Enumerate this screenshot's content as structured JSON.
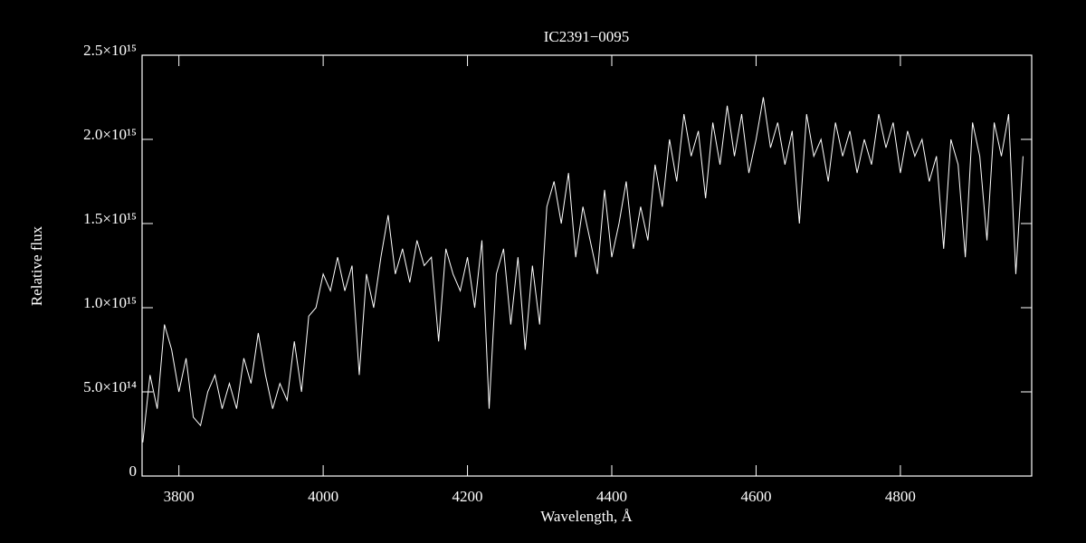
{
  "chart_data": {
    "type": "line",
    "title": "IC2391−0095",
    "xlabel": "Wavelength, Å",
    "ylabel": "Relative flux",
    "color": "#ffffff",
    "xlim": [
      3749,
      4982
    ],
    "ylim": [
      0,
      2500000000000000.0
    ],
    "xticks": [
      3800,
      4000,
      4200,
      4400,
      4600,
      4800
    ],
    "yticks": [
      0,
      {
        "value": 500000000000000.0,
        "label": "5.0×10¹⁴"
      },
      {
        "value": 1000000000000000.0,
        "label": "1.0×10¹⁵"
      },
      {
        "value": 1500000000000000.0,
        "label": "1.5×10¹⁵"
      },
      {
        "value": 2000000000000000.0,
        "label": "2.0×10¹⁵"
      },
      {
        "value": 2500000000000000.0,
        "label": "2.5×10¹⁵"
      }
    ],
    "x": [
      3750,
      3760,
      3770,
      3780,
      3790,
      3800,
      3810,
      3820,
      3830,
      3840,
      3850,
      3860,
      3870,
      3880,
      3890,
      3900,
      3910,
      3920,
      3930,
      3940,
      3950,
      3960,
      3970,
      3980,
      3990,
      4000,
      4010,
      4020,
      4030,
      4040,
      4050,
      4060,
      4070,
      4080,
      4090,
      4100,
      4110,
      4120,
      4130,
      4140,
      4150,
      4160,
      4170,
      4180,
      4190,
      4200,
      4210,
      4220,
      4230,
      4240,
      4250,
      4260,
      4270,
      4280,
      4290,
      4300,
      4310,
      4320,
      4330,
      4340,
      4350,
      4360,
      4370,
      4380,
      4390,
      4400,
      4410,
      4420,
      4430,
      4440,
      4450,
      4460,
      4470,
      4480,
      4490,
      4500,
      4510,
      4520,
      4530,
      4540,
      4550,
      4560,
      4570,
      4580,
      4590,
      4600,
      4610,
      4620,
      4630,
      4640,
      4650,
      4660,
      4670,
      4680,
      4690,
      4700,
      4710,
      4720,
      4730,
      4740,
      4750,
      4760,
      4770,
      4780,
      4790,
      4800,
      4810,
      4820,
      4830,
      4840,
      4850,
      4860,
      4870,
      4880,
      4890,
      4900,
      4910,
      4920,
      4930,
      4940,
      4950,
      4960,
      4970
    ],
    "values": [
      200000000000000.0,
      600000000000000.0,
      400000000000000.0,
      900000000000000.0,
      750000000000000.0,
      500000000000000.0,
      700000000000000.0,
      350000000000000.0,
      300000000000000.0,
      500000000000000.0,
      600000000000000.0,
      400000000000000.0,
      550000000000000.0,
      400000000000000.0,
      700000000000000.0,
      550000000000000.0,
      850000000000000.0,
      600000000000000.0,
      400000000000000.0,
      550000000000000.0,
      450000000000000.0,
      800000000000000.0,
      500000000000000.0,
      950000000000000.0,
      1000000000000000.0,
      1200000000000000.0,
      1100000000000000.0,
      1300000000000000.0,
      1100000000000000.0,
      1250000000000000.0,
      600000000000000.0,
      1200000000000000.0,
      1000000000000000.0,
      1300000000000000.0,
      1550000000000000.0,
      1200000000000000.0,
      1350000000000000.0,
      1150000000000000.0,
      1400000000000000.0,
      1250000000000000.0,
      1300000000000000.0,
      800000000000000.0,
      1350000000000000.0,
      1200000000000000.0,
      1100000000000000.0,
      1300000000000000.0,
      1000000000000000.0,
      1400000000000000.0,
      400000000000000.0,
      1200000000000000.0,
      1350000000000000.0,
      900000000000000.0,
      1300000000000000.0,
      750000000000000.0,
      1250000000000000.0,
      900000000000000.0,
      1600000000000000.0,
      1750000000000000.0,
      1500000000000000.0,
      1800000000000000.0,
      1300000000000000.0,
      1600000000000000.0,
      1400000000000000.0,
      1200000000000000.0,
      1700000000000000.0,
      1300000000000000.0,
      1500000000000000.0,
      1750000000000000.0,
      1350000000000000.0,
      1600000000000000.0,
      1400000000000000.0,
      1850000000000000.0,
      1600000000000000.0,
      2000000000000000.0,
      1750000000000000.0,
      2150000000000000.0,
      1900000000000000.0,
      2050000000000000.0,
      1650000000000000.0,
      2100000000000000.0,
      1850000000000000.0,
      2200000000000000.0,
      1900000000000000.0,
      2150000000000000.0,
      1800000000000000.0,
      2000000000000000.0,
      2250000000000000.0,
      1950000000000000.0,
      2100000000000000.0,
      1850000000000000.0,
      2050000000000000.0,
      1500000000000000.0,
      2150000000000000.0,
      1900000000000000.0,
      2000000000000000.0,
      1750000000000000.0,
      2100000000000000.0,
      1900000000000000.0,
      2050000000000000.0,
      1800000000000000.0,
      2000000000000000.0,
      1850000000000000.0,
      2150000000000000.0,
      1950000000000000.0,
      2100000000000000.0,
      1800000000000000.0,
      2050000000000000.0,
      1900000000000000.0,
      2000000000000000.0,
      1750000000000000.0,
      1900000000000000.0,
      1350000000000000.0,
      2000000000000000.0,
      1850000000000000.0,
      1300000000000000.0,
      2100000000000000.0,
      1900000000000000.0,
      1400000000000000.0,
      2100000000000000.0,
      1900000000000000.0,
      2150000000000000.0,
      1200000000000000.0,
      1900000000000000.0
    ]
  }
}
